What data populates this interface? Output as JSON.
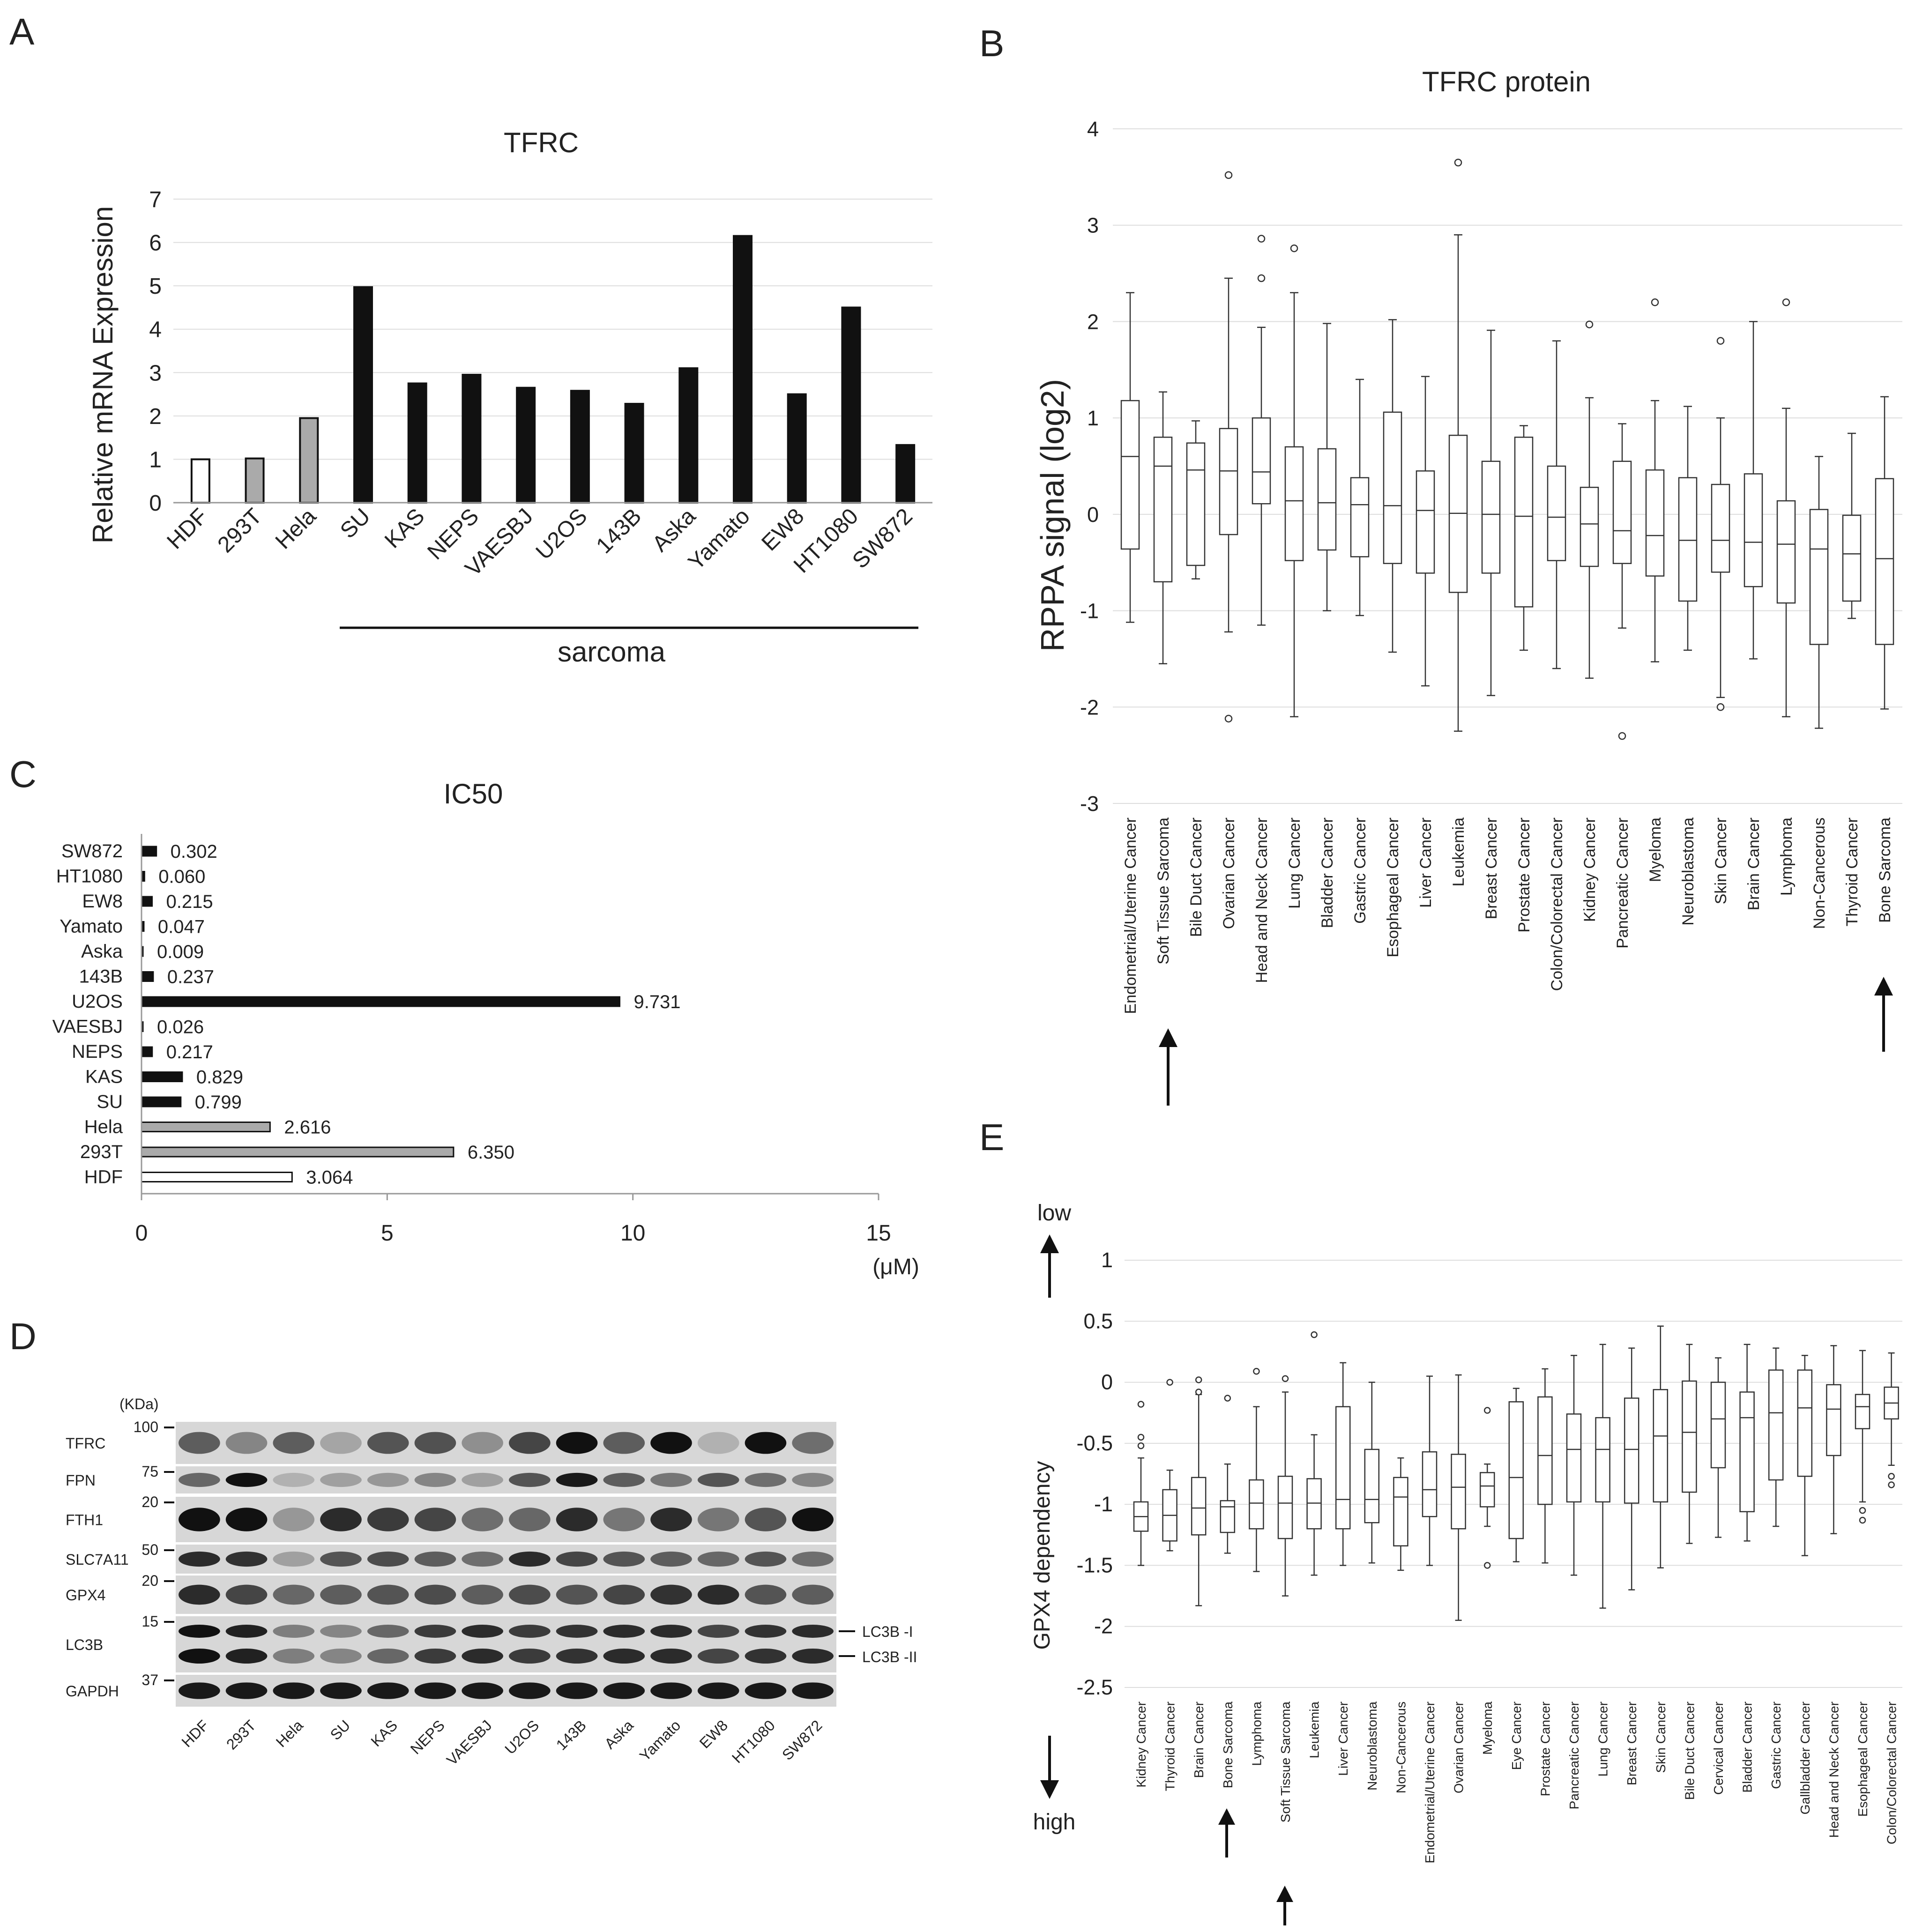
{
  "panels": {
    "A": "A",
    "B": "B",
    "C": "C",
    "D": "D",
    "E": "E"
  },
  "colors": {
    "black": "#111111",
    "gray": "#aaaaaa",
    "white": "#ffffff"
  },
  "chart_data": [
    {
      "id": "A",
      "type": "bar",
      "title": "TFRC",
      "ylabel": "Relative mRNA Expression",
      "xlabel": "",
      "ylim": [
        0,
        7
      ],
      "yticks": [
        0,
        1,
        2,
        3,
        4,
        5,
        6,
        7
      ],
      "categories": [
        "HDF",
        "293T",
        "Hela",
        "SU",
        "KAS",
        "NEPS",
        "VAESBJ",
        "U2OS",
        "143B",
        "Aska",
        "Yamato",
        "EW8",
        "HT1080",
        "SW872"
      ],
      "values": [
        1.0,
        1.02,
        1.95,
        4.97,
        2.75,
        2.95,
        2.65,
        2.58,
        2.28,
        3.1,
        6.15,
        2.5,
        4.5,
        1.33
      ],
      "fills": [
        "white",
        "gray",
        "gray",
        "black",
        "black",
        "black",
        "black",
        "black",
        "black",
        "black",
        "black",
        "black",
        "black",
        "black"
      ],
      "group_label": "sarcoma"
    },
    {
      "id": "B",
      "type": "box",
      "title": "TFRC protein",
      "ylabel": "RPPA signal (log2)",
      "ylim": [
        -3,
        4
      ],
      "yticks": [
        -3,
        -2,
        -1,
        0,
        1,
        2,
        3,
        4
      ],
      "categories": [
        "Endometrial/Uterine Cancer",
        "Soft Tissue Sarcoma",
        "Bile Duct Cancer",
        "Ovarian Cancer",
        "Head and Neck Cancer",
        "Lung Cancer",
        "Bladder Cancer",
        "Gastric Cancer",
        "Esophageal Cancer",
        "Liver Cancer",
        "Leukemia",
        "Breast Cancer",
        "Prostate Cancer",
        "Colon/Colorectal Cancer",
        "Kidney Cancer",
        "Pancreatic Cancer",
        "Myeloma",
        "Neuroblastoma",
        "Skin Cancer",
        "Brain Cancer",
        "Lymphoma",
        "Non-Cancerous",
        "Thyroid Cancer",
        "Bone Sarcoma"
      ],
      "boxes": [
        {
          "min": -1.12,
          "q1": -0.36,
          "median": 0.6,
          "q3": 1.18,
          "max": 2.3,
          "outliers": []
        },
        {
          "min": -1.55,
          "q1": -0.7,
          "median": 0.5,
          "q3": 0.8,
          "max": 1.27,
          "outliers": []
        },
        {
          "min": -0.67,
          "q1": -0.53,
          "median": 0.46,
          "q3": 0.74,
          "max": 0.97,
          "outliers": []
        },
        {
          "min": -1.22,
          "q1": -0.21,
          "median": 0.45,
          "q3": 0.89,
          "max": 2.45,
          "outliers": [
            3.52,
            -2.12
          ]
        },
        {
          "min": -1.15,
          "q1": 0.11,
          "median": 0.44,
          "q3": 1.0,
          "max": 1.94,
          "outliers": [
            2.86,
            2.45
          ]
        },
        {
          "min": -2.1,
          "q1": -0.48,
          "median": 0.14,
          "q3": 0.7,
          "max": 2.3,
          "outliers": [
            2.76
          ]
        },
        {
          "min": -1.0,
          "q1": -0.37,
          "median": 0.12,
          "q3": 0.68,
          "max": 1.98,
          "outliers": []
        },
        {
          "min": -1.05,
          "q1": -0.44,
          "median": 0.1,
          "q3": 0.38,
          "max": 1.4,
          "outliers": []
        },
        {
          "min": -1.43,
          "q1": -0.51,
          "median": 0.09,
          "q3": 1.06,
          "max": 2.02,
          "outliers": []
        },
        {
          "min": -1.78,
          "q1": -0.61,
          "median": 0.04,
          "q3": 0.45,
          "max": 1.43,
          "outliers": []
        },
        {
          "min": -2.25,
          "q1": -0.81,
          "median": 0.01,
          "q3": 0.82,
          "max": 2.9,
          "outliers": [
            3.65
          ]
        },
        {
          "min": -1.88,
          "q1": -0.61,
          "median": 0.0,
          "q3": 0.55,
          "max": 1.91,
          "outliers": []
        },
        {
          "min": -1.41,
          "q1": -0.96,
          "median": -0.02,
          "q3": 0.8,
          "max": 0.92,
          "outliers": []
        },
        {
          "min": -1.6,
          "q1": -0.48,
          "median": -0.03,
          "q3": 0.5,
          "max": 1.8,
          "outliers": []
        },
        {
          "min": -1.7,
          "q1": -0.54,
          "median": -0.1,
          "q3": 0.28,
          "max": 1.21,
          "outliers": [
            1.97
          ]
        },
        {
          "min": -1.18,
          "q1": -0.51,
          "median": -0.17,
          "q3": 0.55,
          "max": 0.94,
          "outliers": [
            -2.3
          ]
        },
        {
          "min": -1.53,
          "q1": -0.64,
          "median": -0.22,
          "q3": 0.46,
          "max": 1.18,
          "outliers": [
            2.2
          ]
        },
        {
          "min": -1.41,
          "q1": -0.9,
          "median": -0.27,
          "q3": 0.38,
          "max": 1.12,
          "outliers": []
        },
        {
          "min": -1.9,
          "q1": -0.6,
          "median": -0.27,
          "q3": 0.31,
          "max": 1.0,
          "outliers": [
            1.8,
            -2.0
          ]
        },
        {
          "min": -1.5,
          "q1": -0.75,
          "median": -0.29,
          "q3": 0.42,
          "max": 2.0,
          "outliers": []
        },
        {
          "min": -2.1,
          "q1": -0.92,
          "median": -0.31,
          "q3": 0.14,
          "max": 1.1,
          "outliers": [
            2.2
          ]
        },
        {
          "min": -2.22,
          "q1": -1.35,
          "median": -0.36,
          "q3": 0.05,
          "max": 0.6,
          "outliers": []
        },
        {
          "min": -1.08,
          "q1": -0.9,
          "median": -0.41,
          "q3": -0.01,
          "max": 0.84,
          "outliers": []
        },
        {
          "min": -2.02,
          "q1": -1.35,
          "median": -0.46,
          "q3": 0.37,
          "max": 1.22,
          "outliers": []
        }
      ],
      "highlight": [
        "Soft Tissue Sarcoma",
        "Bone Sarcoma"
      ]
    },
    {
      "id": "C",
      "type": "bar",
      "orientation": "horizontal",
      "title": "IC50",
      "xunit": "(μM)",
      "xlim": [
        0,
        15
      ],
      "xticks": [
        0,
        5,
        10,
        15
      ],
      "categories": [
        "SW872",
        "HT1080",
        "EW8",
        "Yamato",
        "Aska",
        "143B",
        "U2OS",
        "VAESBJ",
        "NEPS",
        "KAS",
        "SU",
        "Hela",
        "293T",
        "HDF"
      ],
      "values": [
        0.302,
        0.06,
        0.215,
        0.047,
        0.009,
        0.237,
        9.731,
        0.026,
        0.217,
        0.829,
        0.799,
        2.616,
        6.35,
        3.064
      ],
      "labels": [
        "0.302",
        "0.060",
        "0.215",
        "0.047",
        "0.009",
        "0.237",
        "9.731",
        "0.026",
        "0.217",
        "0.829",
        "0.799",
        "2.616",
        "6.350",
        "3.064"
      ],
      "fills": [
        "black",
        "black",
        "black",
        "black",
        "black",
        "black",
        "black",
        "black",
        "black",
        "black",
        "black",
        "gray",
        "gray",
        "white"
      ]
    },
    {
      "id": "E",
      "type": "box",
      "ylabel": "GPX4 dependency",
      "ylim": [
        -2.5,
        1
      ],
      "yticks": [
        -2.5,
        -2,
        -1.5,
        -1,
        -0.5,
        0,
        0.5,
        1
      ],
      "low_label": "low",
      "high_label": "high",
      "categories": [
        "Kidney Cancer",
        "Thyroid Cancer",
        "Brain Cancer",
        "Bone Sarcoma",
        "Lymphoma",
        "Soft Tissue Sarcoma",
        "Leukemia",
        "Liver Cancer",
        "Neuroblastoma",
        "Non-Cancerous",
        "Endometrial/Uterine Cancer",
        "Ovarian Cancer",
        "Myeloma",
        "Eye Cancer",
        "Prostate Cancer",
        "Pancreatic Cancer",
        "Lung Cancer",
        "Breast Cancer",
        "Skin Cancer",
        "Bile Duct Cancer",
        "Cervical Cancer",
        "Bladder Cancer",
        "Gastric Cancer",
        "Gallbladder Cancer",
        "Head and Neck Cancer",
        "Esophageal Cancer",
        "Colon/Colorectal Cancer"
      ],
      "boxes": [
        {
          "min": -1.5,
          "q1": -1.22,
          "median": -1.1,
          "q3": -0.98,
          "max": -0.62,
          "outliers": [
            -0.18,
            -0.45,
            -0.52
          ]
        },
        {
          "min": -1.38,
          "q1": -1.3,
          "median": -1.09,
          "q3": -0.88,
          "max": -0.72,
          "outliers": [
            0.0
          ]
        },
        {
          "min": -1.83,
          "q1": -1.25,
          "median": -1.03,
          "q3": -0.78,
          "max": -0.1,
          "outliers": [
            0.02,
            -0.08
          ]
        },
        {
          "min": -1.4,
          "q1": -1.23,
          "median": -1.02,
          "q3": -0.97,
          "max": -0.67,
          "outliers": [
            -0.13
          ]
        },
        {
          "min": -1.55,
          "q1": -1.2,
          "median": -0.99,
          "q3": -0.8,
          "max": -0.2,
          "outliers": [
            0.09
          ]
        },
        {
          "min": -1.75,
          "q1": -1.28,
          "median": -0.99,
          "q3": -0.77,
          "max": -0.08,
          "outliers": [
            0.03
          ]
        },
        {
          "min": -1.58,
          "q1": -1.2,
          "median": -0.99,
          "q3": -0.79,
          "max": -0.43,
          "outliers": [
            0.39
          ]
        },
        {
          "min": -1.5,
          "q1": -1.2,
          "median": -0.96,
          "q3": -0.2,
          "max": 0.16,
          "outliers": []
        },
        {
          "min": -1.48,
          "q1": -1.15,
          "median": -0.96,
          "q3": -0.55,
          "max": 0.0,
          "outliers": []
        },
        {
          "min": -1.54,
          "q1": -1.34,
          "median": -0.94,
          "q3": -0.78,
          "max": -0.62,
          "outliers": []
        },
        {
          "min": -1.5,
          "q1": -1.1,
          "median": -0.88,
          "q3": -0.57,
          "max": 0.05,
          "outliers": []
        },
        {
          "min": -1.95,
          "q1": -1.2,
          "median": -0.86,
          "q3": -0.59,
          "max": 0.06,
          "outliers": []
        },
        {
          "min": -1.18,
          "q1": -1.02,
          "median": -0.85,
          "q3": -0.74,
          "max": -0.67,
          "outliers": [
            -0.23,
            -1.5
          ]
        },
        {
          "min": -1.47,
          "q1": -1.28,
          "median": -0.78,
          "q3": -0.16,
          "max": -0.05,
          "outliers": []
        },
        {
          "min": -1.48,
          "q1": -1.0,
          "median": -0.6,
          "q3": -0.12,
          "max": 0.11,
          "outliers": []
        },
        {
          "min": -1.58,
          "q1": -0.98,
          "median": -0.55,
          "q3": -0.26,
          "max": 0.22,
          "outliers": []
        },
        {
          "min": -1.85,
          "q1": -0.98,
          "median": -0.55,
          "q3": -0.29,
          "max": 0.31,
          "outliers": []
        },
        {
          "min": -1.7,
          "q1": -0.99,
          "median": -0.55,
          "q3": -0.13,
          "max": 0.28,
          "outliers": []
        },
        {
          "min": -1.52,
          "q1": -0.98,
          "median": -0.44,
          "q3": -0.06,
          "max": 0.46,
          "outliers": []
        },
        {
          "min": -1.32,
          "q1": -0.9,
          "median": -0.41,
          "q3": 0.01,
          "max": 0.31,
          "outliers": []
        },
        {
          "min": -1.27,
          "q1": -0.7,
          "median": -0.3,
          "q3": 0.0,
          "max": 0.2,
          "outliers": []
        },
        {
          "min": -1.3,
          "q1": -1.06,
          "median": -0.29,
          "q3": -0.08,
          "max": 0.31,
          "outliers": []
        },
        {
          "min": -1.18,
          "q1": -0.8,
          "median": -0.25,
          "q3": 0.1,
          "max": 0.28,
          "outliers": []
        },
        {
          "min": -1.42,
          "q1": -0.77,
          "median": -0.21,
          "q3": 0.1,
          "max": 0.22,
          "outliers": []
        },
        {
          "min": -1.24,
          "q1": -0.6,
          "median": -0.22,
          "q3": -0.02,
          "max": 0.3,
          "outliers": []
        },
        {
          "min": -0.98,
          "q1": -0.38,
          "median": -0.2,
          "q3": -0.1,
          "max": 0.26,
          "outliers": [
            -1.05,
            -1.13
          ]
        },
        {
          "min": -0.68,
          "q1": -0.3,
          "median": -0.17,
          "q3": -0.04,
          "max": 0.24,
          "outliers": [
            -0.77,
            -0.84
          ]
        }
      ],
      "highlight": [
        "Bone Sarcoma",
        "Soft Tissue Sarcoma"
      ]
    }
  ],
  "blot": {
    "kda_label": "(KDa)",
    "rows": [
      {
        "protein": "TFRC",
        "marker": "100",
        "intensity": [
          0.55,
          0.3,
          0.55,
          0.12,
          0.6,
          0.62,
          0.25,
          0.7,
          1.0,
          0.55,
          1.0,
          0.05,
          1.0,
          0.45
        ]
      },
      {
        "protein": "FPN",
        "marker": "75",
        "intensity": [
          0.5,
          1.0,
          0.05,
          0.15,
          0.2,
          0.3,
          0.15,
          0.6,
          0.95,
          0.55,
          0.4,
          0.6,
          0.45,
          0.3
        ]
      },
      {
        "protein": "FTH1",
        "marker": "20",
        "intensity": [
          1.0,
          1.0,
          0.2,
          0.85,
          0.75,
          0.7,
          0.45,
          0.5,
          0.85,
          0.4,
          0.85,
          0.4,
          0.6,
          1.0
        ]
      },
      {
        "protein": "SLC7A11",
        "marker": "50",
        "intensity": [
          0.85,
          0.8,
          0.15,
          0.6,
          0.65,
          0.55,
          0.45,
          0.85,
          0.7,
          0.6,
          0.55,
          0.5,
          0.6,
          0.45
        ]
      },
      {
        "protein": "GPX4",
        "marker": "20",
        "intensity": [
          0.85,
          0.7,
          0.5,
          0.55,
          0.6,
          0.65,
          0.55,
          0.65,
          0.6,
          0.7,
          0.8,
          0.85,
          0.6,
          0.55
        ]
      },
      {
        "protein": "LC3B",
        "marker": "15",
        "intensity": [
          1.0,
          0.9,
          0.35,
          0.3,
          0.5,
          0.75,
          0.85,
          0.75,
          0.8,
          0.85,
          0.85,
          0.7,
          0.8,
          0.85
        ]
      },
      {
        "protein": "GAPDH",
        "marker": "37",
        "intensity": [
          0.95,
          0.95,
          0.95,
          0.95,
          0.95,
          0.95,
          0.95,
          0.95,
          0.95,
          0.95,
          0.95,
          0.95,
          0.95,
          0.95
        ]
      }
    ],
    "lc3b_labels": [
      "LC3B -I",
      "LC3B -II"
    ],
    "lanes": [
      "HDF",
      "293T",
      "Hela",
      "SU",
      "KAS",
      "NEPS",
      "VAESBJ",
      "U2OS",
      "143B",
      "Aska",
      "Yamato",
      "EW8",
      "HT1080",
      "SW872"
    ]
  }
}
